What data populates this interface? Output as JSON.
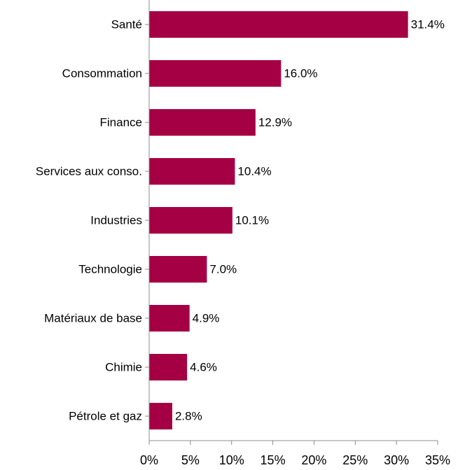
{
  "chart_data": {
    "type": "bar",
    "orientation": "horizontal",
    "categories": [
      "Santé",
      "Consommation",
      "Finance",
      "Services aux conso.",
      "Industries",
      "Technologie",
      "Matériaux de base",
      "Chimie",
      "Pétrole et gaz"
    ],
    "values": [
      31.4,
      16.0,
      12.9,
      10.4,
      10.1,
      7.0,
      4.9,
      4.6,
      2.8
    ],
    "value_labels": [
      "31.4%",
      "16.0%",
      "12.9%",
      "10.4%",
      "10.1%",
      "7.0%",
      "4.9%",
      "4.6%",
      "2.8%"
    ],
    "x_ticks": [
      0,
      5,
      10,
      15,
      20,
      25,
      30,
      35
    ],
    "x_tick_labels": [
      "0%",
      "5%",
      "10%",
      "15%",
      "20%",
      "25%",
      "30%",
      "35%"
    ],
    "xlim": [
      0,
      35
    ],
    "grid": false,
    "legend": "none",
    "bar_color": "#a50044"
  }
}
